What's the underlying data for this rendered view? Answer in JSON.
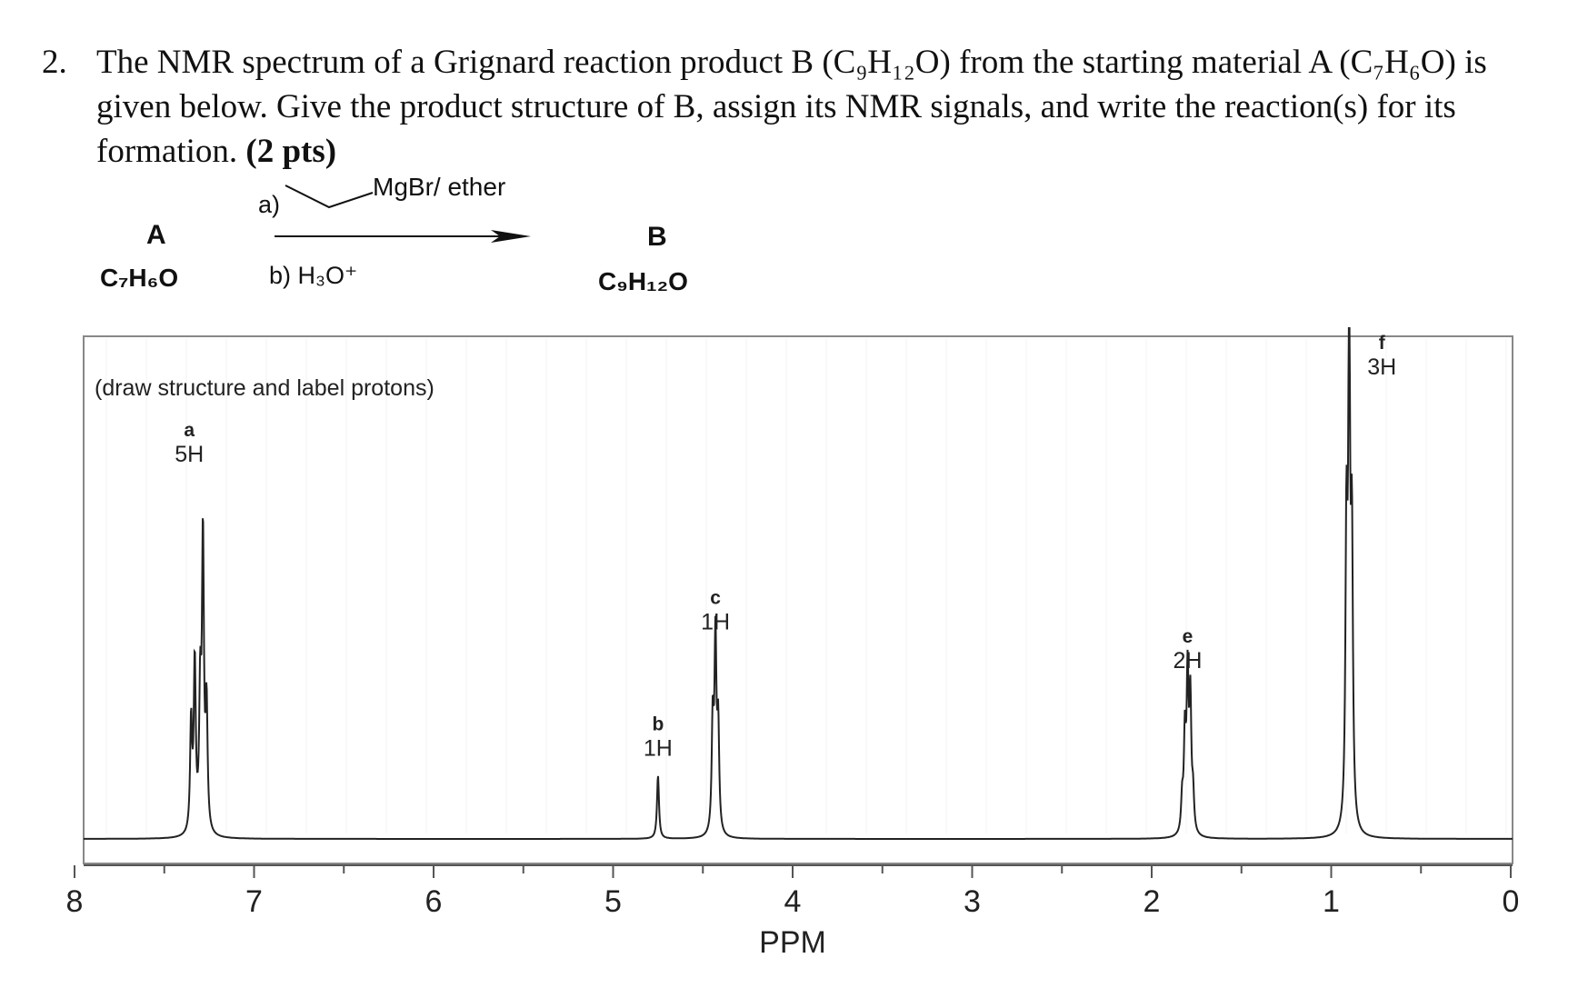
{
  "question": {
    "number": "2.",
    "text": "The NMR spectrum of a Grignard reaction product B (C₉H₁₂O) from the starting material A (C₇H₆O) is given below. Give the product structure of B, assign its NMR signals, and write the reaction(s) for its formation.",
    "points": "(2 pts)"
  },
  "scheme": {
    "reactant_label": "A",
    "reactant_formula": "C₇H₆O",
    "step_a_prefix": "a)",
    "step_a_reagent": "MgBr/ ether",
    "step_b": "b) H₃O⁺",
    "product_label": "B",
    "product_formula": "C₉H₁₂O"
  },
  "spectrum": {
    "instruction": "(draw structure and label protons)",
    "x_axis_label": "PPM",
    "x_ticks": [
      "8",
      "7",
      "6",
      "5",
      "4",
      "3",
      "2",
      "1",
      "0"
    ],
    "peaks": [
      {
        "letter": "a",
        "integration": "5H",
        "ppm": 7.3
      },
      {
        "letter": "b",
        "integration": "1H",
        "ppm": 4.75
      },
      {
        "letter": "c",
        "integration": "1H",
        "ppm": 4.43
      },
      {
        "letter": "e",
        "integration": "2H",
        "ppm": 1.8
      },
      {
        "letter": "f",
        "integration": "3H",
        "ppm": 0.9
      }
    ]
  },
  "chart_data": {
    "type": "line",
    "xlabel": "PPM",
    "xlim": [
      8,
      0
    ],
    "x_reversed": true,
    "series": [
      {
        "values": [
          {
            "ppm": 7.3,
            "relative_height": 0.6
          },
          {
            "ppm": 4.75,
            "relative_height": 0.13
          },
          {
            "ppm": 4.43,
            "relative_height": 0.39
          },
          {
            "ppm": 1.8,
            "relative_height": 0.31
          },
          {
            "ppm": 0.9,
            "relative_height": 1.0
          }
        ]
      }
    ]
  }
}
